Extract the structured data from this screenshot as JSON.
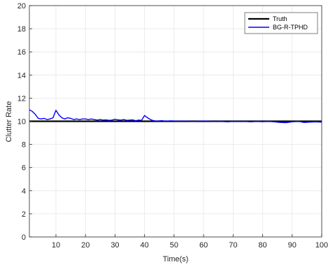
{
  "chart_data": {
    "type": "line",
    "title": "",
    "xlabel": "Time(s)",
    "ylabel": "Clutter Rate",
    "xlim": [
      1,
      100
    ],
    "ylim": [
      0,
      20
    ],
    "xticks": [
      10,
      20,
      30,
      40,
      50,
      60,
      70,
      80,
      90,
      100
    ],
    "yticks": [
      0,
      2,
      4,
      6,
      8,
      10,
      12,
      14,
      16,
      18,
      20
    ],
    "grid": true,
    "legend_position": "top-right",
    "series": [
      {
        "name": "Truth",
        "color": "#000000",
        "x": [
          1,
          100
        ],
        "y": [
          10,
          10
        ]
      },
      {
        "name": "BG-R-TPHD",
        "color": "#0000ff",
        "x": [
          1,
          2,
          3,
          4,
          5,
          6,
          7,
          8,
          9,
          10,
          11,
          12,
          13,
          14,
          15,
          16,
          17,
          18,
          19,
          20,
          21,
          22,
          23,
          24,
          25,
          26,
          27,
          28,
          29,
          30,
          31,
          32,
          33,
          34,
          35,
          36,
          37,
          38,
          39,
          40,
          41,
          42,
          43,
          44,
          45,
          46,
          47,
          48,
          49,
          50,
          52,
          54,
          56,
          58,
          60,
          62,
          64,
          66,
          68,
          70,
          72,
          74,
          76,
          78,
          80,
          82,
          84,
          86,
          88,
          90,
          92,
          94,
          96,
          98,
          100
        ],
        "y": [
          11.0,
          10.85,
          10.6,
          10.25,
          10.2,
          10.25,
          10.15,
          10.2,
          10.3,
          10.95,
          10.55,
          10.3,
          10.2,
          10.3,
          10.25,
          10.15,
          10.2,
          10.15,
          10.2,
          10.2,
          10.15,
          10.2,
          10.15,
          10.1,
          10.15,
          10.1,
          10.12,
          10.08,
          10.1,
          10.18,
          10.12,
          10.1,
          10.15,
          10.08,
          10.1,
          10.12,
          10.05,
          10.1,
          10.08,
          10.5,
          10.3,
          10.15,
          10.05,
          10.02,
          10.03,
          10.05,
          10.0,
          10.02,
          10.03,
          10.02,
          10.0,
          10.02,
          9.98,
          10.0,
          10.02,
          10.0,
          9.98,
          10.0,
          9.95,
          10.0,
          9.98,
          10.0,
          9.95,
          10.0,
          9.97,
          10.0,
          9.95,
          9.9,
          9.88,
          9.95,
          10.0,
          9.9,
          9.93,
          9.95,
          9.92
        ]
      }
    ]
  }
}
